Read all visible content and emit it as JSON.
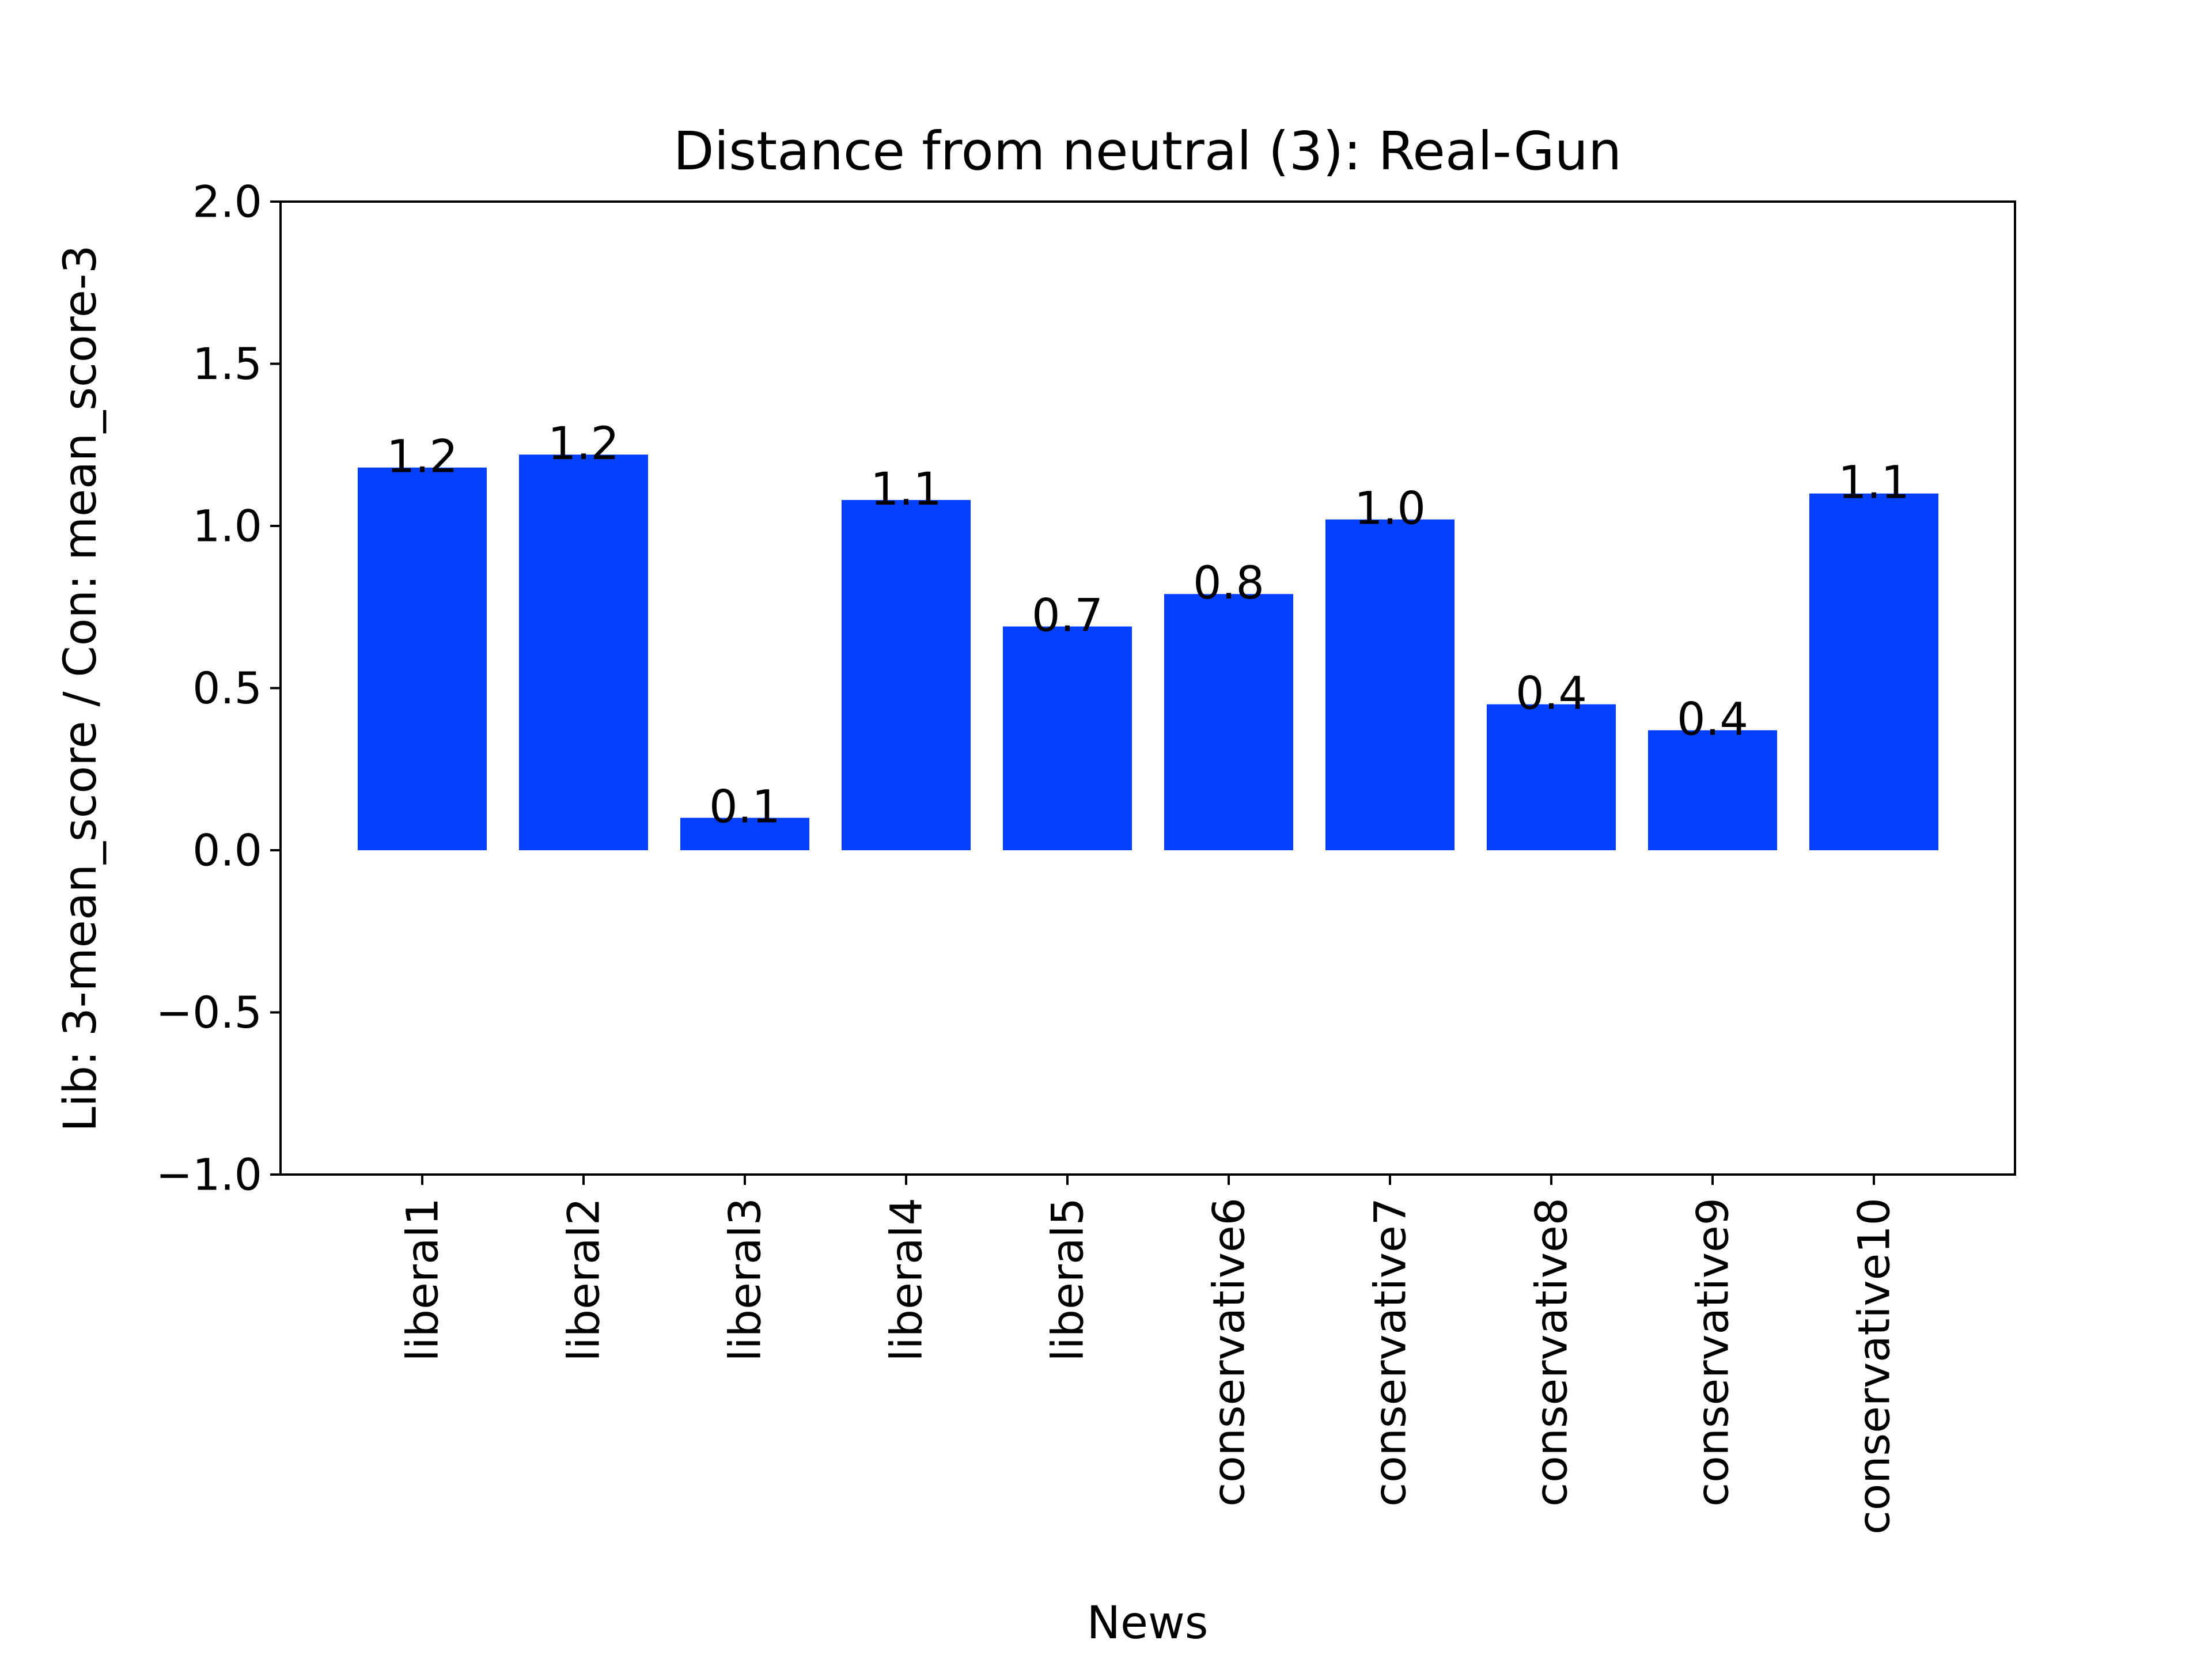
{
  "chart_data": {
    "type": "bar",
    "title": "Distance from neutral (3): Real-Gun",
    "xlabel": "News",
    "ylabel": "Lib: 3-mean_score / Con: mean_score-3",
    "categories": [
      "liberal1",
      "liberal2",
      "liberal3",
      "liberal4",
      "liberal5",
      "conservative6",
      "conservative7",
      "conservative8",
      "conservative9",
      "conservative10"
    ],
    "values": [
      1.18,
      1.22,
      0.1,
      1.08,
      0.69,
      0.79,
      1.02,
      0.45,
      0.37,
      1.1
    ],
    "data_labels": [
      "1.2",
      "1.2",
      "0.1",
      "1.1",
      "0.7",
      "0.8",
      "1.0",
      "0.4",
      "0.4",
      "1.1"
    ],
    "ylim": [
      -1.0,
      2.0
    ],
    "yticks": [
      -1.0,
      -0.5,
      0.0,
      0.5,
      1.0,
      1.5,
      2.0
    ],
    "ytick_labels": [
      "−1.0",
      "−0.5",
      "0.0",
      "0.5",
      "1.0",
      "1.5",
      "2.0"
    ],
    "bar_color": "#0540ff",
    "grid": false,
    "legend": "none"
  }
}
